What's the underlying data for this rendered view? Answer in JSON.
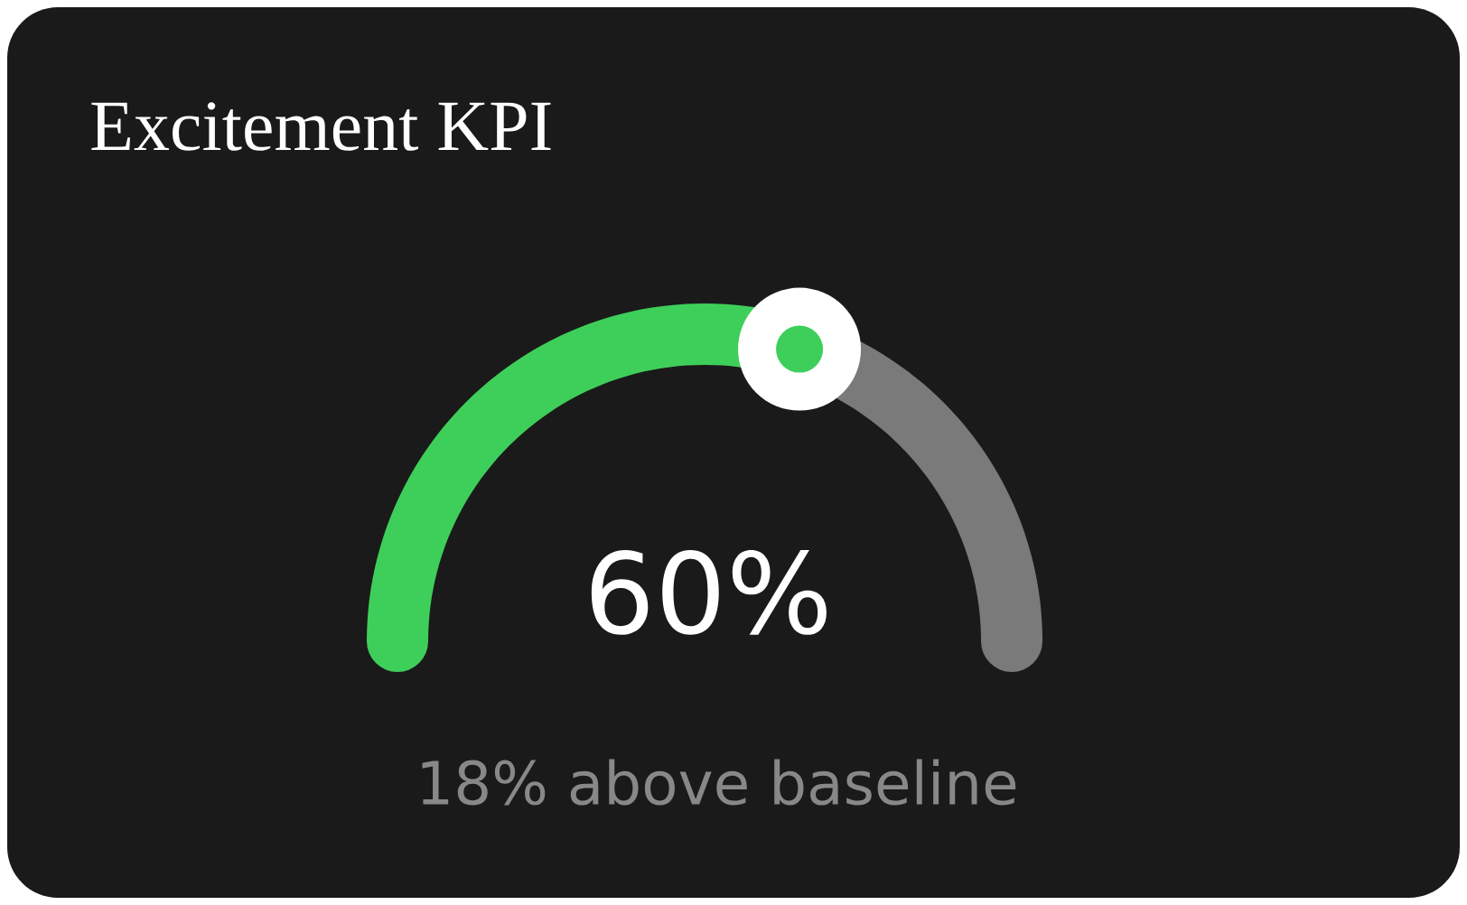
{
  "chart_data": {
    "type": "donut",
    "title": "Excitement KPI",
    "categories": [
      null,
      null
    ],
    "values": [
      60,
      40
    ],
    "colors": [
      "#3ecf5a",
      "#7a7a7a"
    ],
    "value_labels": [
      "60%",
      null
    ],
    "annotations": [
      "18% above baseline"
    ]
  }
}
